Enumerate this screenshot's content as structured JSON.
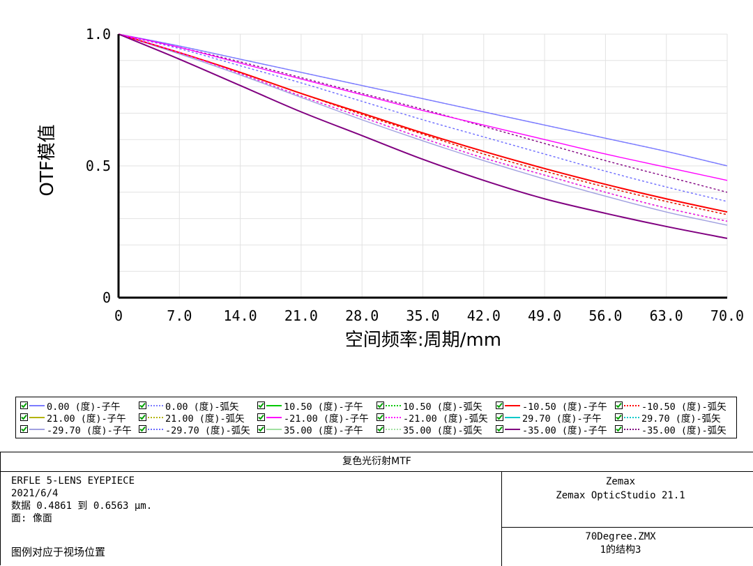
{
  "chart_data": {
    "type": "line",
    "xlabel": "空间频率:周期/mm",
    "ylabel": "OTF模值",
    "xlim": [
      0,
      70
    ],
    "ylim": [
      0,
      1
    ],
    "x_ticks": [
      "0",
      "7.0",
      "14.0",
      "21.0",
      "28.0",
      "35.0",
      "42.0",
      "49.0",
      "56.0",
      "63.0",
      "70.0"
    ],
    "y_ticks": [
      "0",
      "0.5",
      "1.0"
    ],
    "grid": true,
    "x": [
      0,
      7,
      14,
      21,
      28,
      35,
      42,
      49,
      56,
      63,
      70
    ],
    "series": [
      {
        "name": "0.00 (度)-子午",
        "color": "#7b7bff",
        "dash": "solid",
        "values": [
          1.0,
          0.955,
          0.905,
          0.855,
          0.805,
          0.755,
          0.705,
          0.655,
          0.605,
          0.555,
          0.5
        ]
      },
      {
        "name": "0.00 (度)-弧矢",
        "color": "#7b7bff",
        "dash": "dotted",
        "values": [
          1.0,
          0.955,
          0.905,
          0.855,
          0.805,
          0.755,
          0.705,
          0.655,
          0.605,
          0.555,
          0.5
        ]
      },
      {
        "name": "10.50 (度)-子午",
        "color": "#00c800",
        "dash": "solid",
        "values": [
          1.0,
          0.93,
          0.855,
          0.775,
          0.7,
          0.625,
          0.555,
          0.49,
          0.43,
          0.375,
          0.325
        ]
      },
      {
        "name": "10.50 (度)-弧矢",
        "color": "#00c800",
        "dash": "dotted",
        "values": [
          1.0,
          0.93,
          0.855,
          0.775,
          0.695,
          0.62,
          0.545,
          0.48,
          0.42,
          0.365,
          0.315
        ]
      },
      {
        "name": "-10.50 (度)-子午",
        "color": "#ff0000",
        "dash": "solid",
        "values": [
          1.0,
          0.93,
          0.855,
          0.775,
          0.7,
          0.625,
          0.555,
          0.49,
          0.43,
          0.375,
          0.325
        ]
      },
      {
        "name": "-10.50 (度)-弧矢",
        "color": "#ff0000",
        "dash": "dotted",
        "values": [
          1.0,
          0.93,
          0.855,
          0.775,
          0.695,
          0.62,
          0.545,
          0.48,
          0.42,
          0.365,
          0.315
        ]
      },
      {
        "name": "21.00 (度)-子午",
        "color": "#b4b400",
        "dash": "solid",
        "values": [
          1.0,
          0.93,
          0.855,
          0.775,
          0.7,
          0.625,
          0.555,
          0.49,
          0.43,
          0.375,
          0.325
        ]
      },
      {
        "name": "21.00 (度)-弧矢",
        "color": "#b4b400",
        "dash": "dotted",
        "values": [
          1.0,
          0.93,
          0.85,
          0.765,
          0.685,
          0.605,
          0.53,
          0.465,
          0.4,
          0.34,
          0.29
        ]
      },
      {
        "name": "-21.00 (度)-子午",
        "color": "#ff00ff",
        "dash": "solid",
        "values": [
          1.0,
          0.95,
          0.89,
          0.83,
          0.77,
          0.71,
          0.655,
          0.6,
          0.545,
          0.495,
          0.445
        ]
      },
      {
        "name": "-21.00 (度)-弧矢",
        "color": "#ff00ff",
        "dash": "dotted",
        "values": [
          1.0,
          0.93,
          0.85,
          0.765,
          0.685,
          0.605,
          0.53,
          0.465,
          0.4,
          0.34,
          0.29
        ]
      },
      {
        "name": "29.70 (度)-子午",
        "color": "#00c8c8",
        "dash": "solid",
        "values": [
          1.0,
          0.93,
          0.855,
          0.775,
          0.7,
          0.625,
          0.555,
          0.49,
          0.43,
          0.375,
          0.325
        ]
      },
      {
        "name": "29.70 (度)-弧矢",
        "color": "#00c8c8",
        "dash": "dotted",
        "values": [
          1.0,
          0.93,
          0.85,
          0.765,
          0.685,
          0.605,
          0.53,
          0.465,
          0.4,
          0.34,
          0.29
        ]
      },
      {
        "name": "-29.70 (度)-子午",
        "color": "#a0a0e0",
        "dash": "solid",
        "values": [
          1.0,
          0.925,
          0.845,
          0.76,
          0.675,
          0.595,
          0.52,
          0.45,
          0.385,
          0.325,
          0.275
        ]
      },
      {
        "name": "-29.70 (度)-弧矢",
        "color": "#6a6aff",
        "dash": "dotted",
        "values": [
          1.0,
          0.945,
          0.88,
          0.815,
          0.745,
          0.675,
          0.61,
          0.545,
          0.48,
          0.42,
          0.365
        ]
      },
      {
        "name": "35.00 (度)-子午",
        "color": "#a0e0a0",
        "dash": "solid",
        "values": [
          1.0,
          0.93,
          0.855,
          0.775,
          0.7,
          0.625,
          0.555,
          0.49,
          0.43,
          0.375,
          0.325
        ]
      },
      {
        "name": "35.00 (度)-弧矢",
        "color": "#a0e0a0",
        "dash": "dotted",
        "values": [
          1.0,
          0.93,
          0.85,
          0.765,
          0.685,
          0.605,
          0.53,
          0.465,
          0.4,
          0.34,
          0.29
        ]
      },
      {
        "name": "-35.00 (度)-子午",
        "color": "#800080",
        "dash": "solid",
        "values": [
          1.0,
          0.905,
          0.805,
          0.705,
          0.615,
          0.525,
          0.445,
          0.375,
          0.32,
          0.27,
          0.225
        ]
      },
      {
        "name": "-35.00 (度)-弧矢",
        "color": "#800080",
        "dash": "dotted",
        "values": [
          1.0,
          0.95,
          0.895,
          0.835,
          0.775,
          0.715,
          0.65,
          0.585,
          0.52,
          0.46,
          0.4
        ]
      }
    ]
  },
  "info": {
    "title": "复色光衍射MTF",
    "left_lines": [
      "ERFLE 5-LENS EYEPIECE",
      "2021/6/4",
      "数据 0.4861 到 0.6563 µm.",
      "面: 像面"
    ],
    "note": "图例对应于视场位置",
    "right_top": [
      "Zemax",
      "Zemax OpticStudio 21.1"
    ],
    "right_bottom": [
      "70Degree.ZMX",
      "1的结构3"
    ]
  }
}
